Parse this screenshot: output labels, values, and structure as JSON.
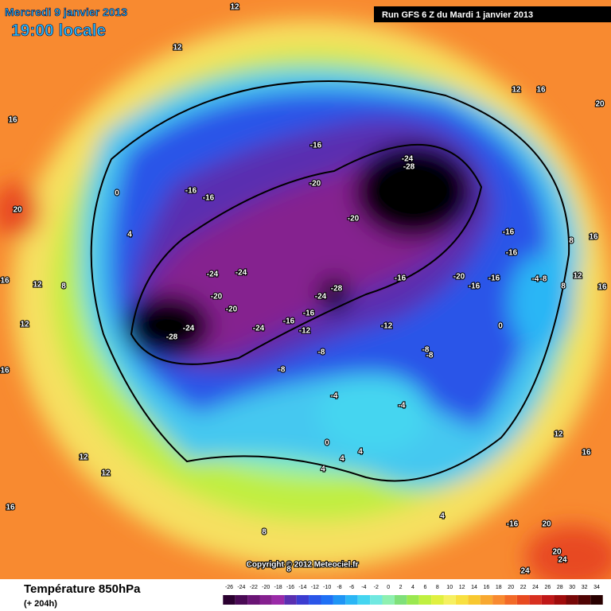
{
  "header": {
    "date": "Mercredi 9 janvier 2013",
    "time": "19:00 locale",
    "run": "Run GFS 6 Z du Mardi 1 janvier 2013"
  },
  "copyright": "Copyright © 2012 Meteociel.fr",
  "footer": {
    "title": "Température 850hPa",
    "lead": "(+ 204h)"
  },
  "colorbar": {
    "labels": [
      "-26",
      "-24",
      "-22",
      "-20",
      "-18",
      "-16",
      "-14",
      "-12",
      "-10",
      "-8",
      "-6",
      "-4",
      "-2",
      "0",
      "2",
      "4",
      "6",
      "8",
      "10",
      "12",
      "14",
      "16",
      "18",
      "20",
      "22",
      "24",
      "26",
      "28",
      "30",
      "32",
      "34"
    ],
    "colors": [
      "#2b0030",
      "#4a0a55",
      "#6a1575",
      "#85208f",
      "#9a2aa8",
      "#5a2fb0",
      "#3c3cd0",
      "#2a55e8",
      "#1f70f5",
      "#1f95f5",
      "#2bb6f5",
      "#45d5f0",
      "#70e8e0",
      "#8ef0b0",
      "#7fe07a",
      "#9ae850",
      "#c0f040",
      "#e0f040",
      "#f6f060",
      "#f8e040",
      "#f8c830",
      "#f8a830",
      "#f88a30",
      "#f26a28",
      "#e84a20",
      "#d83020",
      "#c01818",
      "#a00c0c",
      "#780808",
      "#500404",
      "#280000"
    ]
  },
  "contour_labels": [
    "12",
    "16",
    "12",
    "16",
    "20",
    "-16",
    "-24",
    "-28",
    "-20",
    "-16",
    "-16",
    "0",
    "20",
    "4",
    "-20",
    "-16",
    "-16",
    "8",
    "16",
    "12",
    "8",
    "16",
    "-24",
    "-24",
    "-28",
    "-24",
    "-16",
    "-20",
    "-16",
    "-16",
    "-4",
    "-8",
    "8",
    "12",
    "16",
    "-20",
    "-20",
    "-16",
    "-16",
    "-12",
    "-12",
    "12",
    "-24",
    "-24",
    "-28",
    "0",
    "-8",
    "-8",
    "-8",
    "16",
    "-8",
    "-4",
    "-4",
    "0",
    "4",
    "4",
    "4",
    "12",
    "12",
    "12",
    "16",
    "16",
    "-16",
    "20",
    "8",
    "20",
    "24",
    "24",
    "8",
    "4",
    "12"
  ]
}
